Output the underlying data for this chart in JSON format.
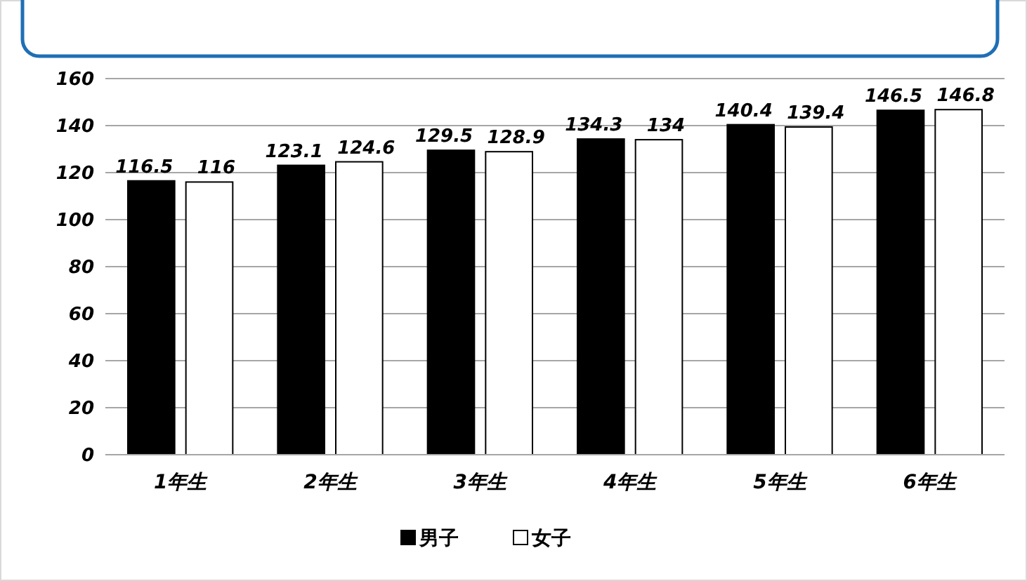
{
  "chart_data": {
    "type": "bar",
    "categories": [
      "1年生",
      "2年生",
      "3年生",
      "4年生",
      "5年生",
      "6年生"
    ],
    "series": [
      {
        "name": "男子",
        "color": "#000000",
        "values": [
          116.5,
          123.1,
          129.5,
          134.3,
          140.4,
          146.5
        ]
      },
      {
        "name": "女子",
        "color": "#ffffff",
        "values": [
          116,
          124.6,
          128.9,
          134,
          139.4,
          146.8
        ]
      }
    ],
    "ylim": [
      0,
      160
    ],
    "yticks": [
      0,
      20,
      40,
      60,
      80,
      100,
      120,
      140,
      160
    ],
    "grid": "y",
    "legend": "bottom",
    "data_labels": true
  }
}
